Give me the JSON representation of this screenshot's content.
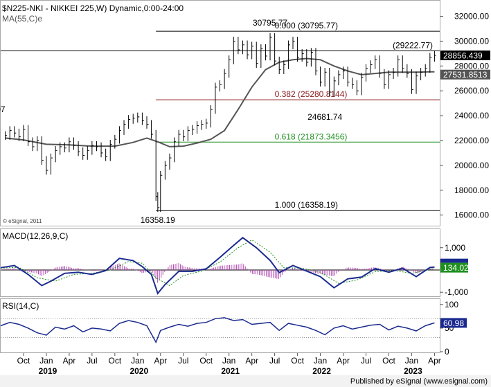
{
  "header": {
    "symbol_line": "$N225-NKI - NIKKEI 225,W) Dynamic,0:00-24:00",
    "ma_label": "MA(55,C)e"
  },
  "price_panel": {
    "ylim": [
      15200,
      33200
    ],
    "y_ticks": [
      16000,
      18000,
      20000,
      22000,
      24000,
      26000,
      28000,
      30000,
      32000
    ],
    "y_tick_labels": [
      "16000.00",
      "18000.00",
      "20000.00",
      "22000.00",
      "24000.00",
      "26000.00",
      "28000.00",
      "30000.00",
      "32000.00"
    ],
    "watermark": "© eSignal, 2011",
    "last_price": {
      "value": 28856.439,
      "label": "28856.439",
      "color": "#000000"
    },
    "ma_value": {
      "value": 27531.8513,
      "label": "27531.8513",
      "color": "#555555"
    },
    "resistance": {
      "value": 29222.77,
      "label": "(29222.77)"
    },
    "fib_levels": [
      {
        "ratio_label": "0.000 (30795.77)",
        "value": 30795.77,
        "color": "#000000"
      },
      {
        "ratio_label": "0.382 (25280.8144)",
        "value": 25280.8144,
        "color": "#8b1a1a"
      },
      {
        "ratio_label": "0.618 (21873.3456)",
        "value": 21873.3456,
        "color": "#1f8f1f"
      },
      {
        "ratio_label": "1.000 (16358.19)",
        "value": 16358.19,
        "color": "#000000"
      }
    ],
    "annotations": [
      {
        "text": "30795.77",
        "x": 2021.45,
        "y": 30795.77
      },
      {
        "text": "24681.74",
        "x": 2022.05,
        "y": 24681.74
      },
      {
        "text": "16358.19",
        "x": 2020.22,
        "y": 16358.19
      },
      {
        "text": "48.07",
        "x": 2018.55,
        "y": 24048.07
      }
    ]
  },
  "macd_panel": {
    "label": "MACD(12,26,9,C)",
    "ylim": [
      -1150,
      1800
    ],
    "y_ticks": [
      1000,
      -1000
    ],
    "y_tick_labels": [
      "1,000",
      "-1,000"
    ],
    "last_value": {
      "value": 134.02,
      "label": "134.02",
      "color": "#1f8f1f"
    },
    "macd_label_color": "#1a2a8f"
  },
  "rsi_panel": {
    "label": "RSI(14,C)",
    "ylim": [
      0,
      110
    ],
    "y_ticks": [
      100,
      50,
      0
    ],
    "y_tick_labels": [
      "100",
      "50",
      "0"
    ],
    "levels": [
      70,
      30
    ],
    "last_value": {
      "value": 60.98,
      "label": "60.98",
      "color": "#1a2a8f"
    }
  },
  "x_axis": {
    "month_ticks": [
      {
        "x": 2018.75,
        "label": "Oct"
      },
      {
        "x": 2019.0,
        "label": "Jan"
      },
      {
        "x": 2019.25,
        "label": "Apr"
      },
      {
        "x": 2019.5,
        "label": "Jul"
      },
      {
        "x": 2019.75,
        "label": "Oct"
      },
      {
        "x": 2020.0,
        "label": "Jan"
      },
      {
        "x": 2020.25,
        "label": "Apr"
      },
      {
        "x": 2020.5,
        "label": "Jul"
      },
      {
        "x": 2020.75,
        "label": "Oct"
      },
      {
        "x": 2021.0,
        "label": "Jan"
      },
      {
        "x": 2021.25,
        "label": "Apr"
      },
      {
        "x": 2021.5,
        "label": "Jul"
      },
      {
        "x": 2021.75,
        "label": "Oct"
      },
      {
        "x": 2022.0,
        "label": "Jan"
      },
      {
        "x": 2022.25,
        "label": "Apr"
      },
      {
        "x": 2022.5,
        "label": "Jul"
      },
      {
        "x": 2022.75,
        "label": "Oct"
      },
      {
        "x": 2023.0,
        "label": "Jan"
      },
      {
        "x": 2023.25,
        "label": "Apr"
      }
    ],
    "year_ticks": [
      {
        "x": 2019.0,
        "label": "2019"
      },
      {
        "x": 2020.0,
        "label": "2020"
      },
      {
        "x": 2021.0,
        "label": "2021"
      },
      {
        "x": 2022.0,
        "label": "2022"
      },
      {
        "x": 2023.0,
        "label": "2023"
      }
    ]
  },
  "footer": {
    "text": "Published by eSignal (www.esignal.com)"
  },
  "chart_data": {
    "type": "line",
    "title": "$N225-NKI - NIKKEI 225,W) Dynamic,0:00-24:00",
    "x_range": [
      2018.5,
      2023.3
    ],
    "price_series": {
      "name": "NIKKEI 225 weekly close (approx.)",
      "x": [
        2018.55,
        2018.6,
        2018.65,
        2018.7,
        2018.75,
        2018.8,
        2018.85,
        2018.9,
        2018.95,
        2019.0,
        2019.05,
        2019.1,
        2019.15,
        2019.2,
        2019.25,
        2019.3,
        2019.35,
        2019.4,
        2019.45,
        2019.5,
        2019.55,
        2019.6,
        2019.65,
        2019.7,
        2019.75,
        2019.8,
        2019.85,
        2019.9,
        2019.95,
        2020.0,
        2020.05,
        2020.1,
        2020.15,
        2020.2,
        2020.22,
        2020.25,
        2020.3,
        2020.35,
        2020.4,
        2020.45,
        2020.5,
        2020.55,
        2020.6,
        2020.65,
        2020.7,
        2020.75,
        2020.8,
        2020.85,
        2020.9,
        2020.95,
        2021.0,
        2021.05,
        2021.1,
        2021.15,
        2021.2,
        2021.25,
        2021.3,
        2021.35,
        2021.4,
        2021.45,
        2021.5,
        2021.55,
        2021.6,
        2021.65,
        2021.7,
        2021.75,
        2021.8,
        2021.85,
        2021.9,
        2021.95,
        2022.0,
        2022.05,
        2022.1,
        2022.15,
        2022.2,
        2022.25,
        2022.3,
        2022.35,
        2022.4,
        2022.45,
        2022.5,
        2022.55,
        2022.6,
        2022.65,
        2022.7,
        2022.75,
        2022.8,
        2022.85,
        2022.9,
        2022.95,
        2023.0,
        2023.05,
        2023.1,
        2023.15,
        2023.2,
        2023.25
      ],
      "y": [
        22400,
        22800,
        22600,
        22300,
        22900,
        21900,
        21500,
        22000,
        20400,
        19600,
        20600,
        21200,
        21500,
        21400,
        21900,
        21600,
        21100,
        20800,
        21200,
        21600,
        21500,
        21000,
        20700,
        21700,
        22100,
        22800,
        23300,
        23700,
        23800,
        23900,
        23600,
        23300,
        22500,
        17500,
        16600,
        19200,
        20000,
        20600,
        21900,
        22500,
        22300,
        22800,
        22900,
        23200,
        23300,
        23400,
        24500,
        26300,
        26500,
        27400,
        28500,
        30000,
        29300,
        29700,
        28900,
        29600,
        28200,
        29400,
        28800,
        30300,
        28400,
        27700,
        28100,
        29700,
        30000,
        28700,
        29000,
        28300,
        29100,
        27600,
        26700,
        27500,
        25900,
        26800,
        27300,
        27600,
        26700,
        26500,
        26000,
        27100,
        27800,
        28100,
        28500,
        27400,
        26500,
        27300,
        27500,
        28500,
        27800,
        27400,
        26100,
        27200,
        27500,
        27800,
        28700,
        28856
      ]
    },
    "ma_series": {
      "name": "MA(55,C)",
      "x": [
        2018.55,
        2018.75,
        2019.0,
        2019.25,
        2019.5,
        2019.75,
        2019.95,
        2020.1,
        2020.22,
        2020.35,
        2020.5,
        2020.65,
        2020.8,
        2020.95,
        2021.1,
        2021.25,
        2021.4,
        2021.55,
        2021.7,
        2021.85,
        2022.0,
        2022.15,
        2022.3,
        2022.45,
        2022.6,
        2022.75,
        2022.9,
        2023.05,
        2023.2,
        2023.25
      ],
      "y": [
        22200,
        22050,
        21700,
        21650,
        21550,
        21550,
        21850,
        22200,
        21900,
        21500,
        21550,
        21800,
        22100,
        22800,
        24500,
        26300,
        27700,
        28300,
        28500,
        28600,
        28500,
        28000,
        27600,
        27300,
        27400,
        27500,
        27500,
        27500,
        27530,
        27532
      ]
    },
    "macd_series": {
      "name": "MACD(12,26,9,C)",
      "x": [
        2018.5,
        2018.65,
        2018.8,
        2018.95,
        2019.05,
        2019.2,
        2019.35,
        2019.5,
        2019.65,
        2019.8,
        2019.95,
        2020.05,
        2020.15,
        2020.22,
        2020.3,
        2020.45,
        2020.6,
        2020.75,
        2020.9,
        2021.05,
        2021.15,
        2021.3,
        2021.45,
        2021.55,
        2021.7,
        2021.85,
        2022.0,
        2022.15,
        2022.3,
        2022.45,
        2022.6,
        2022.75,
        2022.9,
        2023.05,
        2023.2,
        2023.25
      ],
      "y": [
        100,
        200,
        -200,
        -700,
        -500,
        -150,
        -100,
        -200,
        -30,
        520,
        420,
        150,
        -200,
        -1050,
        -650,
        -60,
        -60,
        50,
        560,
        1100,
        1450,
        1000,
        430,
        -120,
        200,
        -50,
        -300,
        -800,
        -400,
        -320,
        60,
        -100,
        80,
        -300,
        110,
        134
      ]
    },
    "signal_series": {
      "name": "Signal",
      "x": [
        2018.5,
        2018.7,
        2018.9,
        2019.1,
        2019.3,
        2019.5,
        2019.7,
        2019.9,
        2020.05,
        2020.2,
        2020.35,
        2020.5,
        2020.7,
        2020.9,
        2021.1,
        2021.25,
        2021.45,
        2021.6,
        2021.8,
        2022.0,
        2022.2,
        2022.4,
        2022.6,
        2022.8,
        2023.0,
        2023.2,
        2023.25
      ],
      "y": [
        80,
        120,
        -350,
        -500,
        -200,
        -150,
        0,
        380,
        300,
        -350,
        -700,
        -250,
        -50,
        350,
        1000,
        1350,
        800,
        100,
        80,
        -100,
        -600,
        -450,
        -80,
        -20,
        -150,
        20,
        60
      ]
    },
    "rsi_series": {
      "name": "RSI(14,C)",
      "x": [
        2018.5,
        2018.6,
        2018.7,
        2018.8,
        2018.9,
        2019.0,
        2019.1,
        2019.2,
        2019.3,
        2019.4,
        2019.5,
        2019.6,
        2019.7,
        2019.8,
        2019.9,
        2020.0,
        2020.1,
        2020.2,
        2020.25,
        2020.35,
        2020.45,
        2020.55,
        2020.65,
        2020.75,
        2020.85,
        2020.95,
        2021.05,
        2021.15,
        2021.25,
        2021.35,
        2021.45,
        2021.55,
        2021.65,
        2021.75,
        2021.85,
        2021.95,
        2022.05,
        2022.15,
        2022.25,
        2022.35,
        2022.45,
        2022.55,
        2022.65,
        2022.75,
        2022.85,
        2022.95,
        2023.05,
        2023.15,
        2023.25
      ],
      "y": [
        55,
        62,
        58,
        50,
        40,
        35,
        52,
        48,
        55,
        42,
        50,
        48,
        44,
        60,
        66,
        62,
        55,
        20,
        45,
        52,
        58,
        54,
        60,
        62,
        70,
        72,
        66,
        68,
        58,
        60,
        62,
        45,
        60,
        56,
        52,
        45,
        36,
        50,
        55,
        48,
        52,
        56,
        58,
        46,
        54,
        50,
        44,
        55,
        61
      ]
    }
  }
}
